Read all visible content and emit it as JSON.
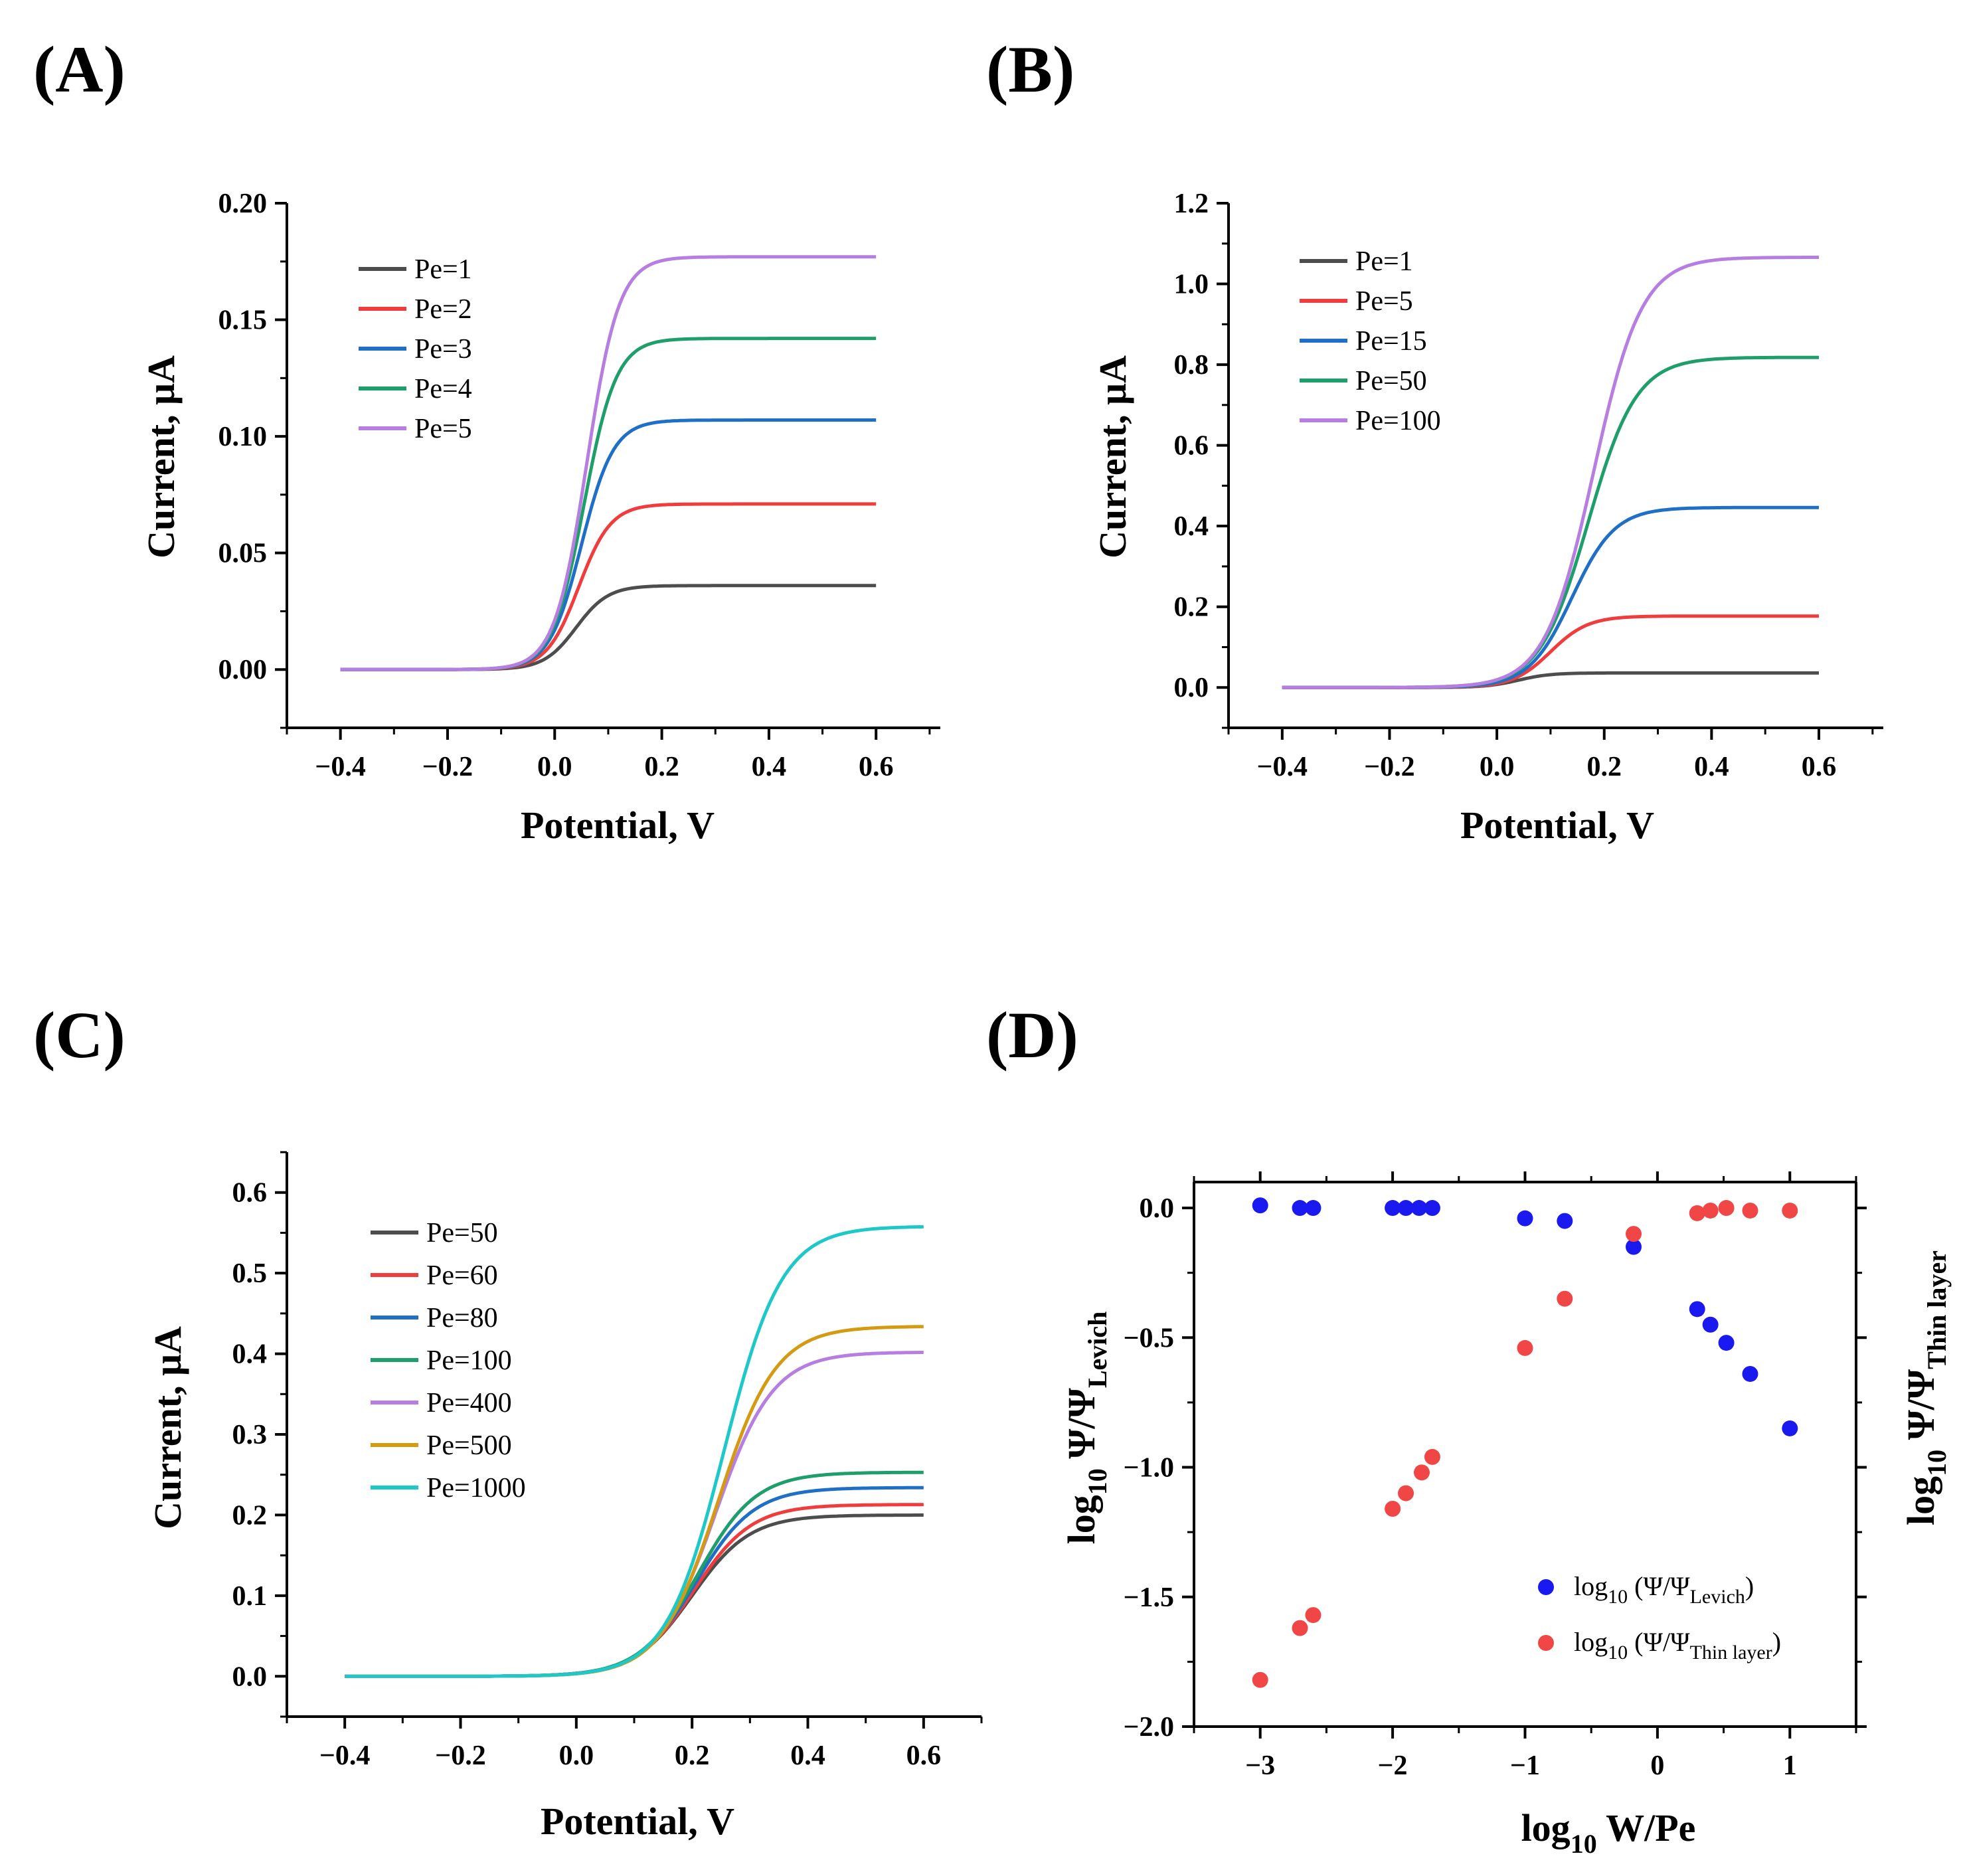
{
  "figure": {
    "panels": [
      "(A)",
      "(B)",
      "(C)",
      "(D)"
    ]
  },
  "chart_data": [
    {
      "id": "A",
      "panel_label": "(A)",
      "type": "line",
      "xlabel": "Potential, V",
      "ylabel": "Current, μA",
      "xlim": [
        -0.5,
        0.72
      ],
      "ylim": [
        -0.025,
        0.2
      ],
      "xticks": [
        -0.4,
        -0.2,
        0.0,
        0.2,
        0.4,
        0.6
      ],
      "xtick_labels": [
        "−0.4",
        "−0.2",
        "0.0",
        "0.2",
        "0.4",
        "0.6"
      ],
      "yticks": [
        0.0,
        0.05,
        0.1,
        0.15,
        0.2
      ],
      "ytick_labels": [
        "0.00",
        "0.05",
        "0.10",
        "0.15",
        "0.20"
      ],
      "legend_position": "top-left",
      "x_range": [
        -0.4,
        0.6
      ],
      "series": [
        {
          "name": "Pe=1",
          "color": "#4d4d4d",
          "plateau": 0.036,
          "e_half": 0.04,
          "slope": 0.03
        },
        {
          "name": "Pe=2",
          "color": "#f03c3c",
          "plateau": 0.071,
          "e_half": 0.045,
          "slope": 0.03
        },
        {
          "name": "Pe=3",
          "color": "#1f6fc6",
          "plateau": 0.107,
          "e_half": 0.05,
          "slope": 0.03
        },
        {
          "name": "Pe=4",
          "color": "#1e9e6a",
          "plateau": 0.142,
          "e_half": 0.055,
          "slope": 0.03
        },
        {
          "name": "Pe=5",
          "color": "#b57ee0",
          "plateau": 0.177,
          "e_half": 0.06,
          "slope": 0.03
        }
      ]
    },
    {
      "id": "B",
      "panel_label": "(B)",
      "type": "line",
      "xlabel": "Potential, V",
      "ylabel": "Current, μA",
      "xlim": [
        -0.5,
        0.72
      ],
      "ylim": [
        -0.1,
        1.2
      ],
      "xticks": [
        -0.4,
        -0.2,
        0.0,
        0.2,
        0.4,
        0.6
      ],
      "xtick_labels": [
        "−0.4",
        "−0.2",
        "0.0",
        "0.2",
        "0.4",
        "0.6"
      ],
      "yticks": [
        0.0,
        0.2,
        0.4,
        0.6,
        0.8,
        1.0,
        1.2
      ],
      "ytick_labels": [
        "0.0",
        "0.2",
        "0.4",
        "0.6",
        "0.8",
        "1.0",
        "1.2"
      ],
      "legend_position": "top-left",
      "x_range": [
        -0.4,
        0.6
      ],
      "series": [
        {
          "name": "Pe=1",
          "color": "#4d4d4d",
          "plateau": 0.036,
          "e_half": 0.04,
          "slope": 0.03
        },
        {
          "name": "Pe=5",
          "color": "#f03c3c",
          "plateau": 0.177,
          "e_half": 0.1,
          "slope": 0.035
        },
        {
          "name": "Pe=15",
          "color": "#1f6fc6",
          "plateau": 0.446,
          "e_half": 0.14,
          "slope": 0.04
        },
        {
          "name": "Pe=50",
          "color": "#1e9e6a",
          "plateau": 0.818,
          "e_half": 0.17,
          "slope": 0.045
        },
        {
          "name": "Pe=100",
          "color": "#b57ee0",
          "plateau": 1.066,
          "e_half": 0.18,
          "slope": 0.045
        }
      ]
    },
    {
      "id": "C",
      "panel_label": "(C)",
      "type": "line",
      "xlabel": "Potential, V",
      "ylabel": "Current, μA",
      "xlim": [
        -0.5,
        0.7
      ],
      "ylim": [
        -0.05,
        0.65
      ],
      "xticks": [
        -0.4,
        -0.2,
        0.0,
        0.2,
        0.4,
        0.6
      ],
      "xtick_labels": [
        "−0.4",
        "−0.2",
        "0.0",
        "0.2",
        "0.4",
        "0.6"
      ],
      "yticks": [
        0.0,
        0.1,
        0.2,
        0.3,
        0.4,
        0.5,
        0.6
      ],
      "ytick_labels": [
        "0.0",
        "0.1",
        "0.2",
        "0.3",
        "0.4",
        "0.5",
        "0.6"
      ],
      "legend_position": "top-left",
      "x_range": [
        -0.4,
        0.6
      ],
      "series": [
        {
          "name": "Pe=50",
          "color": "#4d4d4d",
          "plateau": 0.2,
          "e_half": 0.2,
          "slope": 0.05
        },
        {
          "name": "Pe=60",
          "color": "#f03c3c",
          "plateau": 0.213,
          "e_half": 0.203,
          "slope": 0.05
        },
        {
          "name": "Pe=80",
          "color": "#1f6fc6",
          "plateau": 0.234,
          "e_half": 0.207,
          "slope": 0.05
        },
        {
          "name": "Pe=100",
          "color": "#1e9e6a",
          "plateau": 0.253,
          "e_half": 0.21,
          "slope": 0.05
        },
        {
          "name": "Pe=400",
          "color": "#b57ee0",
          "plateau": 0.402,
          "e_half": 0.24,
          "slope": 0.05
        },
        {
          "name": "Pe=500",
          "color": "#d49a12",
          "plateau": 0.434,
          "e_half": 0.245,
          "slope": 0.05
        },
        {
          "name": "Pe=1000",
          "color": "#1ec8c8",
          "plateau": 0.558,
          "e_half": 0.255,
          "slope": 0.05
        }
      ]
    },
    {
      "id": "D",
      "panel_label": "(D)",
      "type": "scatter",
      "xlabel": "log10 W/Pe",
      "ylabel": "log10 Ψ/ΨLevich",
      "ylabel_right": "log10 Ψ/ΨThin layer",
      "xlim": [
        -3.5,
        1.5
      ],
      "ylim": [
        -2.0,
        0.1
      ],
      "xticks": [
        -3,
        -2,
        -1,
        0,
        1
      ],
      "xtick_labels": [
        "−3",
        "−2",
        "−1",
        "0",
        "1"
      ],
      "yticks": [
        0.0,
        -0.5,
        -1.0,
        -1.5,
        -2.0
      ],
      "ytick_labels": [
        "0.0",
        "−0.5",
        "−1.0",
        "−1.5",
        "−2.0"
      ],
      "legend_position": "bottom-right",
      "series": [
        {
          "name": "log10 (Ψ/ΨLevich)",
          "color": "#1a1af0",
          "x": [
            -3.0,
            -2.7,
            -2.6,
            -2.0,
            -1.9,
            -1.8,
            -1.7,
            -1.0,
            -0.7,
            -0.18,
            0.3,
            0.4,
            0.52,
            0.7,
            1.0
          ],
          "y": [
            0.01,
            0.0,
            0.0,
            0.0,
            0.0,
            0.0,
            0.0,
            -0.04,
            -0.05,
            -0.15,
            -0.39,
            -0.45,
            -0.52,
            -0.64,
            -0.85
          ]
        },
        {
          "name": "log10 (Ψ/ΨThin layer)",
          "color": "#f04646",
          "x": [
            -3.0,
            -2.7,
            -2.6,
            -2.0,
            -1.9,
            -1.78,
            -1.7,
            -1.0,
            -0.7,
            -0.18,
            0.3,
            0.4,
            0.52,
            0.7,
            1.0
          ],
          "y": [
            -1.82,
            -1.62,
            -1.57,
            -1.16,
            -1.1,
            -1.02,
            -0.96,
            -0.54,
            -0.35,
            -0.1,
            -0.02,
            -0.01,
            0.0,
            -0.01,
            -0.01
          ]
        }
      ]
    }
  ]
}
